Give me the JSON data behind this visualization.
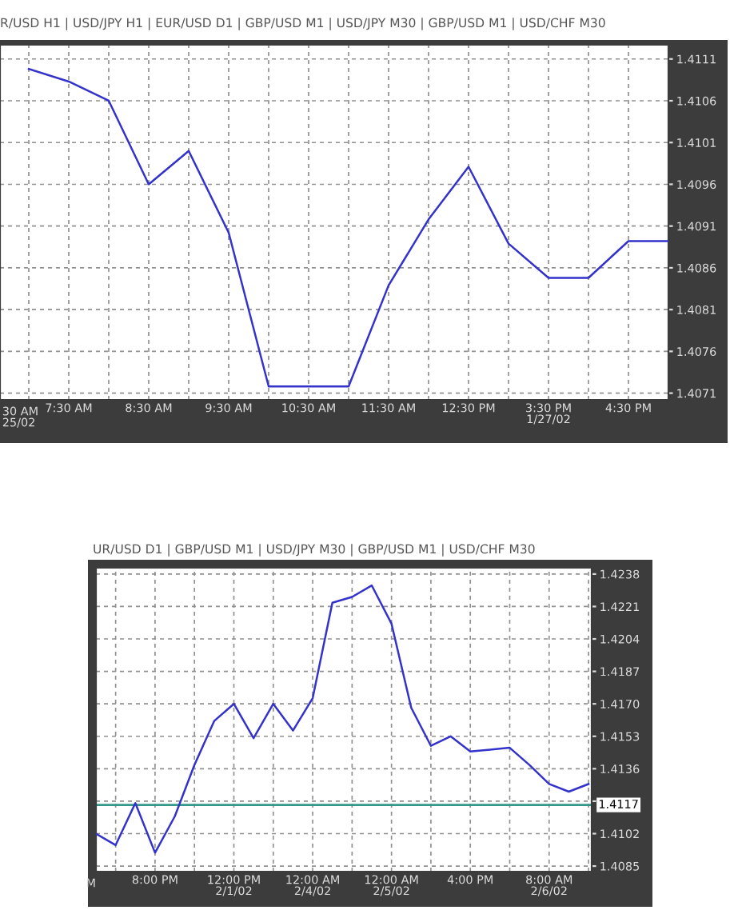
{
  "chart_data": [
    {
      "type": "line",
      "subtitle": "R/USD H1 | USD/JPY H1 | EUR/USD D1 | GBP/USD M1 | USD/JPY M30 | GBP/USD M1 | USD/CHF M30",
      "annotations": [
        "30 AM\n25/02"
      ],
      "categories": [
        null,
        "7:30 AM",
        null,
        "8:30 AM",
        null,
        "9:30 AM",
        null,
        "10:30 AM",
        null,
        "11:30 AM",
        null,
        "12:30 PM",
        null,
        "3:30 PM\n1/27/02",
        null,
        "4:30 PM",
        null
      ],
      "series": [
        {
          "color": "#3333cc",
          "values": [
            1.41098,
            1.41083,
            1.4106,
            1.4096,
            1.41,
            1.40902,
            1.40718,
            1.40718,
            1.40718,
            1.40839,
            1.40918,
            1.40981,
            1.40889,
            1.40848,
            1.40848,
            1.40892,
            1.40892
          ]
        }
      ],
      "ylim": [
        1.40702,
        1.41127
      ],
      "yticks": [
        1.4071,
        1.4076,
        1.4081,
        1.4086,
        1.4091,
        1.4096,
        1.4101,
        1.4106,
        1.4111
      ],
      "grid": true
    },
    {
      "type": "line",
      "subtitle": "UR/USD D1 | GBP/USD M1 | USD/JPY M30 | GBP/USD M1 | USD/CHF M30",
      "annotations": [
        "M"
      ],
      "categories": [
        null,
        null,
        null,
        "8:00 PM",
        null,
        null,
        null,
        "12:00 PM\n2/1/02",
        null,
        null,
        null,
        "12:00 AM\n2/4/02",
        null,
        null,
        null,
        "12:00 AM\n2/5/02",
        null,
        null,
        null,
        "4:00 PM",
        null,
        null,
        null,
        "8:00 AM\n2/6/02",
        null,
        null
      ],
      "series": [
        {
          "color": "#3333cc",
          "values": [
            1.4102,
            1.4096,
            1.4118,
            1.4092,
            1.4111,
            1.4138,
            1.4161,
            1.417,
            1.4152,
            1.417,
            1.4156,
            1.4173,
            1.4223,
            1.4226,
            1.4232,
            1.4212,
            1.4168,
            1.4148,
            1.4153,
            1.4145,
            1.4146,
            1.4147,
            1.4138,
            1.4128,
            1.4124,
            1.4128
          ]
        }
      ],
      "ylim": [
        1.40821,
        1.42413
      ],
      "yticks": [
        1.4085,
        1.4102,
        {
          "value": 1.4119,
          "label": null
        },
        1.4136,
        1.4153,
        {
          "value": 1.417,
          "label": "1.4170"
        },
        1.4187,
        1.4204,
        1.4221,
        1.4238
      ],
      "ref_lines": [
        {
          "axis": "y",
          "value": 1.4117,
          "label": "1.4117",
          "color": "#339988"
        }
      ],
      "grid": true
    }
  ]
}
